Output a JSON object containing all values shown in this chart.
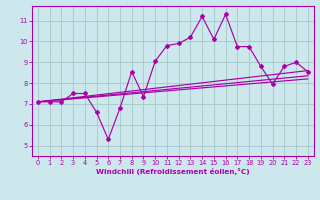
{
  "bg_color": "#cce8ec",
  "grid_color": "#aacccc",
  "line_color": "#aa00aa",
  "xlabel": "Windchill (Refroidissement éolien,°C)",
  "xlim": [
    -0.5,
    23.5
  ],
  "ylim": [
    4.5,
    11.7
  ],
  "yticks": [
    5,
    6,
    7,
    8,
    9,
    10,
    11
  ],
  "xticks": [
    0,
    1,
    2,
    3,
    4,
    5,
    6,
    7,
    8,
    9,
    10,
    11,
    12,
    13,
    14,
    15,
    16,
    17,
    18,
    19,
    20,
    21,
    22,
    23
  ],
  "line1_x": [
    0,
    1,
    2,
    3,
    4,
    5,
    6,
    7,
    8,
    9,
    10,
    11,
    12,
    13,
    14,
    15,
    16,
    17,
    18,
    19,
    20,
    21,
    22,
    23
  ],
  "line1_y": [
    7.1,
    7.1,
    7.1,
    7.5,
    7.5,
    6.6,
    5.3,
    6.8,
    8.55,
    7.35,
    9.05,
    9.8,
    9.9,
    10.2,
    11.2,
    10.1,
    11.3,
    9.75,
    9.75,
    8.8,
    7.95,
    8.8,
    9.0,
    8.55
  ],
  "line2_x": [
    0,
    23
  ],
  "line2_y": [
    7.1,
    8.6
  ],
  "line3_x": [
    0,
    23
  ],
  "line3_y": [
    7.1,
    8.35
  ],
  "line4_x": [
    0,
    23
  ],
  "line4_y": [
    7.1,
    8.2
  ],
  "spine_color": "#aa00aa"
}
